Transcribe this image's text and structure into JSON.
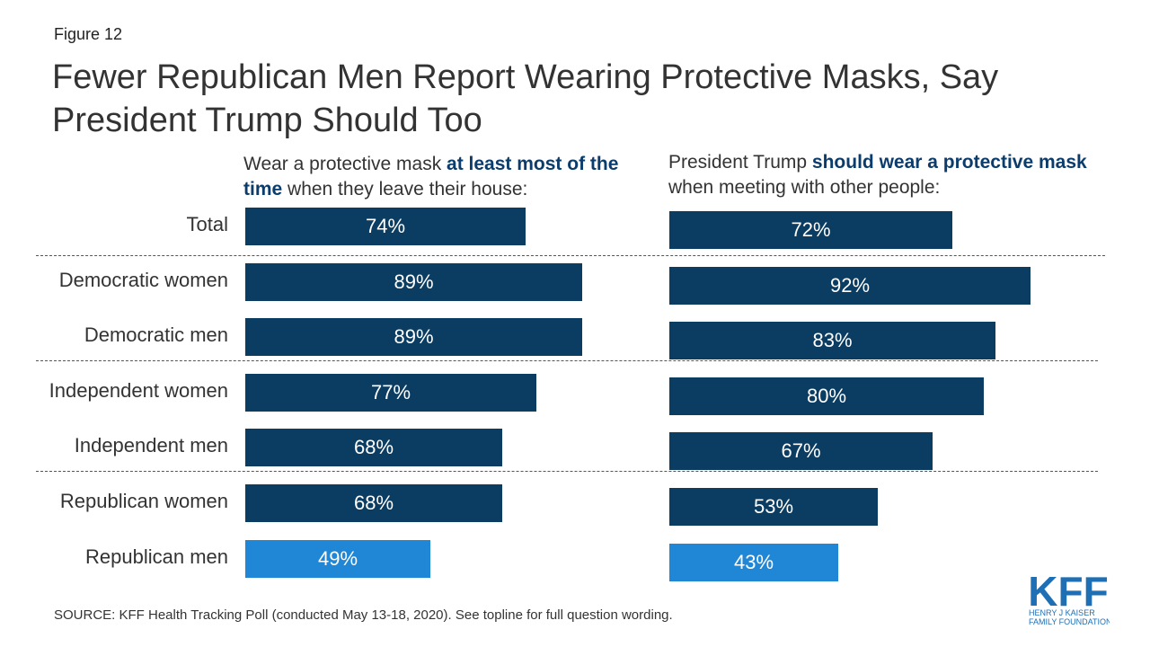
{
  "figure_label": "Figure 12",
  "title": "Fewer Republican Men Report Wearing Protective Masks, Say President Trump Should Too",
  "colors": {
    "dark_bar": "#0b3c61",
    "highlight_bar": "#1f87d6",
    "heading_accent": "#0b3c6b"
  },
  "chart_data": [
    {
      "type": "bar",
      "orientation": "horizontal",
      "heading_parts": [
        "Wear a protective mask ",
        "at least most of the time",
        " when they leave their house:"
      ],
      "categories": [
        "Total",
        "Democratic women",
        "Democratic men",
        "Independent women",
        "Independent men",
        "Republican women",
        "Republican men"
      ],
      "values": [
        74,
        89,
        89,
        77,
        68,
        68,
        49
      ],
      "value_labels": [
        "74%",
        "89%",
        "89%",
        "77%",
        "68%",
        "68%",
        "49%"
      ],
      "highlighted": [
        false,
        false,
        false,
        false,
        false,
        false,
        true
      ],
      "xlim": [
        0,
        100
      ]
    },
    {
      "type": "bar",
      "orientation": "horizontal",
      "heading_parts": [
        "President Trump ",
        "should wear a protective mask",
        " when meeting with other people:"
      ],
      "categories": [
        "Total",
        "Democratic women",
        "Democratic men",
        "Independent women",
        "Independent men",
        "Republican women",
        "Republican men"
      ],
      "values": [
        72,
        92,
        83,
        80,
        67,
        53,
        43
      ],
      "value_labels": [
        "72%",
        "92%",
        "83%",
        "80%",
        "67%",
        "53%",
        "43%"
      ],
      "highlighted": [
        false,
        false,
        false,
        false,
        false,
        false,
        true
      ],
      "xlim": [
        0,
        100
      ]
    }
  ],
  "source": "SOURCE: KFF Health Tracking Poll (conducted May 13-18, 2020). See topline for full question wording.",
  "logo": {
    "mark": "KFF",
    "line1": "HENRY J KAISER",
    "line2": "FAMILY FOUNDATION"
  }
}
